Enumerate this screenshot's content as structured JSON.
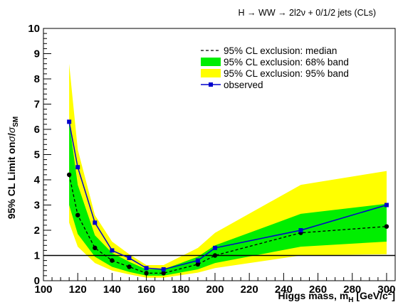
{
  "chart_data": {
    "type": "line",
    "title": "H → WW → 2l2ν + 0/1/2 jets (CLs)",
    "xlabel": "Higgs mass, m_H [GeV/c²]",
    "ylabel": "95% CL Limit onσ/σ_SM",
    "xlim": [
      100,
      305
    ],
    "ylim": [
      0,
      10
    ],
    "x_ticks": [
      "100",
      "120",
      "140",
      "160",
      "180",
      "200",
      "220",
      "240",
      "260",
      "280",
      "300"
    ],
    "y_ticks": [
      "0",
      "1",
      "2",
      "3",
      "4",
      "5",
      "6",
      "7",
      "8",
      "9",
      "10"
    ],
    "reference_line": 1,
    "grid": false,
    "legend_position": "top-right",
    "legend": [
      {
        "label": "95% CL exclusion: median",
        "kind": "dashed-line",
        "color": "#000000"
      },
      {
        "label": "95% CL exclusion: 68% band",
        "kind": "fill",
        "color": "#00ee00"
      },
      {
        "label": "95% CL exclusion: 95% band",
        "kind": "fill",
        "color": "#ffff00"
      },
      {
        "label": "observed",
        "kind": "line-marker",
        "color": "#0000cc"
      }
    ],
    "x": [
      115,
      120,
      130,
      140,
      150,
      160,
      170,
      190,
      200,
      250,
      300
    ],
    "series": [
      {
        "name": "95% CL exclusion: median",
        "values": [
          4.2,
          2.6,
          1.3,
          0.8,
          0.55,
          0.3,
          0.3,
          0.65,
          1.0,
          1.9,
          2.15
        ]
      },
      {
        "name": "observed",
        "values": [
          6.3,
          4.5,
          2.3,
          1.2,
          0.9,
          0.5,
          0.45,
          0.8,
          1.3,
          2.0,
          3.0
        ]
      }
    ],
    "band_68": {
      "low": [
        3.0,
        1.85,
        0.95,
        0.55,
        0.35,
        0.2,
        0.2,
        0.45,
        0.7,
        1.35,
        1.55
      ],
      "high": [
        6.3,
        3.8,
        1.8,
        1.1,
        0.75,
        0.45,
        0.45,
        0.95,
        1.4,
        2.65,
        3.05
      ]
    },
    "band_95": {
      "low": [
        2.3,
        1.35,
        0.7,
        0.4,
        0.25,
        0.12,
        0.12,
        0.32,
        0.5,
        1.0,
        1.05
      ],
      "high": [
        8.6,
        5.2,
        2.6,
        1.55,
        1.05,
        0.62,
        0.62,
        1.3,
        1.9,
        3.8,
        4.35
      ]
    },
    "colors": {
      "band_68": "#00ee00",
      "band_95": "#ffff00",
      "observed": "#0000cc",
      "median": "#000000",
      "reference": "#000000"
    }
  }
}
